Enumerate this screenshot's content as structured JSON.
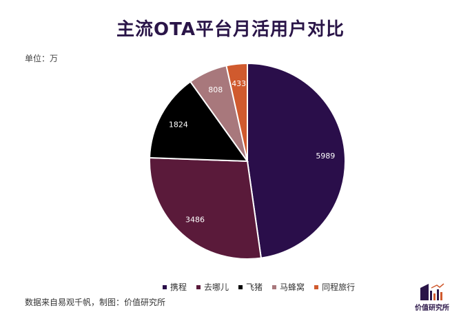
{
  "title": "主流OTA平台月活用户对比",
  "unit": "单位：万",
  "source": "数据来自易观千帆，制图：价值研究所",
  "logo_text": "价值研究所",
  "chart_data": {
    "type": "pie",
    "title": "主流OTA平台月活用户对比",
    "unit": "万",
    "legend_position": "bottom",
    "categories": [
      "携程",
      "去哪儿",
      "飞猪",
      "马蜂窝",
      "同程旅行"
    ],
    "values": [
      5989,
      3486,
      1824,
      808,
      433
    ],
    "colors": [
      "#2a0e4a",
      "#5a1a3a",
      "#000000",
      "#a8787c",
      "#d05a2e"
    ],
    "label_colors": [
      "#ffffff",
      "#ffffff",
      "#ffffff",
      "#ffffff",
      "#ffffff"
    ]
  }
}
